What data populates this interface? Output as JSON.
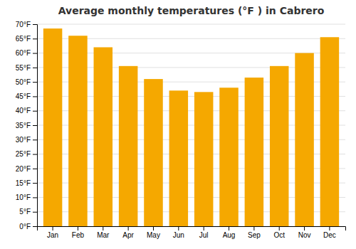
{
  "chart_data": {
    "type": "bar",
    "title": "Average monthly temperatures (°F ) in Cabrero",
    "categories": [
      "Jan",
      "Feb",
      "Mar",
      "Apr",
      "May",
      "Jun",
      "Jul",
      "Aug",
      "Sep",
      "Oct",
      "Nov",
      "Dec"
    ],
    "values": [
      68.5,
      66.0,
      62.0,
      55.5,
      51.0,
      47.0,
      46.5,
      48.0,
      51.5,
      55.5,
      60.0,
      65.5
    ],
    "color": "#F5A800",
    "ylim": [
      0,
      70
    ],
    "yticks": [
      {
        "value": 0,
        "label": "0°F"
      },
      {
        "value": 5,
        "label": "5°F"
      },
      {
        "value": 10,
        "label": "10°F"
      },
      {
        "value": 15,
        "label": "15°F"
      },
      {
        "value": 20,
        "label": "20°F"
      },
      {
        "value": 25,
        "label": "25°F"
      },
      {
        "value": 30,
        "label": "30°F"
      },
      {
        "value": 35,
        "label": "35°F"
      },
      {
        "value": 40,
        "label": "40°F"
      },
      {
        "value": 45,
        "label": "45°F"
      },
      {
        "value": 50,
        "label": "50°F"
      },
      {
        "value": 55,
        "label": "55°F"
      },
      {
        "value": 60,
        "label": "60°F"
      },
      {
        "value": 65,
        "label": "65°F"
      },
      {
        "value": 70,
        "label": "70°F"
      }
    ],
    "grid": true
  }
}
